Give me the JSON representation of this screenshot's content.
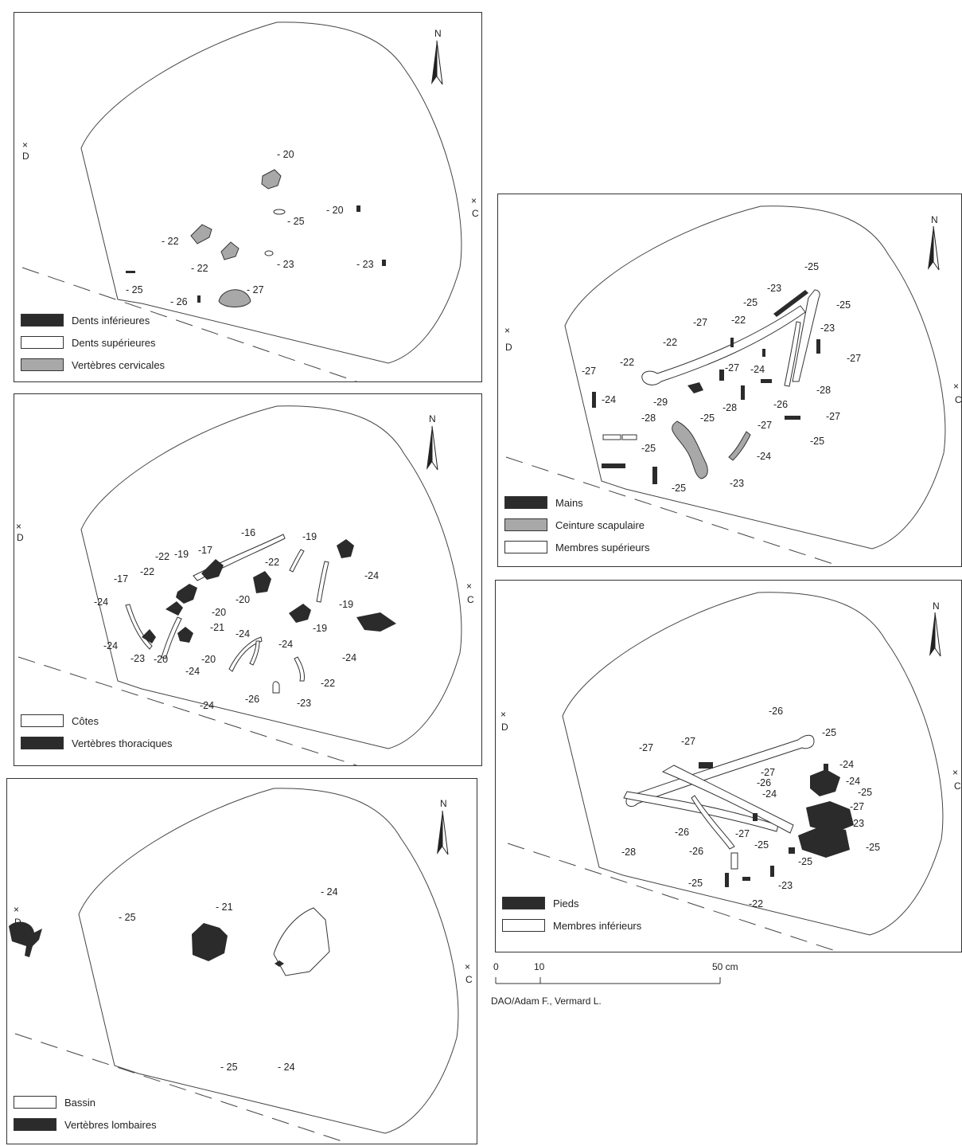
{
  "colors": {
    "dark": "#2b2b2b",
    "grey": "#a8a8a8",
    "white": "#ffffff",
    "line": "#333333"
  },
  "axes": {
    "north": "N",
    "west": "D",
    "east": "C"
  },
  "panels": [
    {
      "legend": [
        {
          "label": "Dents inférieures",
          "swatch": "dark"
        },
        {
          "label": "Dents supérieures",
          "swatch": "white"
        },
        {
          "label": "Vertèbres cervicales",
          "swatch": "grey"
        }
      ],
      "labels": [
        "- 20",
        "- 20",
        "- 25",
        "- 22",
        "- 22",
        "- 23",
        "- 23",
        "- 25",
        "- 26",
        "- 27"
      ]
    },
    {
      "legend": [
        {
          "label": "Côtes",
          "swatch": "white"
        },
        {
          "label": "Vertèbres thoraciques",
          "swatch": "dark"
        }
      ],
      "labels": [
        "-16",
        "-19",
        "-17",
        "-22",
        "-19",
        "-22",
        "-17",
        "-22",
        "-24",
        "-24",
        "-20",
        "-20",
        "-21",
        "-19",
        "-19",
        "-24",
        "-24",
        "-23",
        "-20",
        "-20",
        "-24",
        "-24",
        "-24",
        "-22",
        "-24",
        "-26",
        "-23"
      ]
    },
    {
      "legend": [
        {
          "label": "Bassin",
          "swatch": "white"
        },
        {
          "label": "Vertèbres lombaires",
          "swatch": "dark"
        }
      ],
      "labels": [
        "- 25",
        "- 21",
        "- 24",
        "- 25",
        "- 24"
      ]
    },
    {
      "legend": [
        {
          "label": "Mains",
          "swatch": "dark"
        },
        {
          "label": "Ceinture scapulaire",
          "swatch": "grey"
        },
        {
          "label": "Membres supérieurs",
          "swatch": "white"
        }
      ],
      "labels": [
        "-25",
        "-23",
        "-25",
        "-25",
        "-27",
        "-22",
        "-23",
        "-22",
        "-27",
        "-27",
        "-24",
        "-22",
        "-27",
        "-28",
        "-24",
        "-29",
        "-25",
        "-28",
        "-26",
        "-27",
        "-27",
        "-28",
        "-25",
        "-25",
        "-24",
        "-25",
        "-23"
      ]
    },
    {
      "legend": [
        {
          "label": "Pieds",
          "swatch": "dark"
        },
        {
          "label": "Membres inférieurs",
          "swatch": "white"
        }
      ],
      "labels": [
        "-26",
        "-25",
        "-27",
        "-27",
        "-24",
        "-27",
        "-24",
        "-26",
        "-24",
        "-25",
        "-27",
        "-23",
        "-26",
        "-27",
        "-25",
        "-28",
        "-26",
        "-25",
        "-25",
        "-23",
        "-25",
        "-22"
      ]
    }
  ],
  "scale": {
    "zero": "0",
    "ten": "10",
    "fifty": "50 cm"
  },
  "credit": "DAO/Adam F., Vermard L."
}
